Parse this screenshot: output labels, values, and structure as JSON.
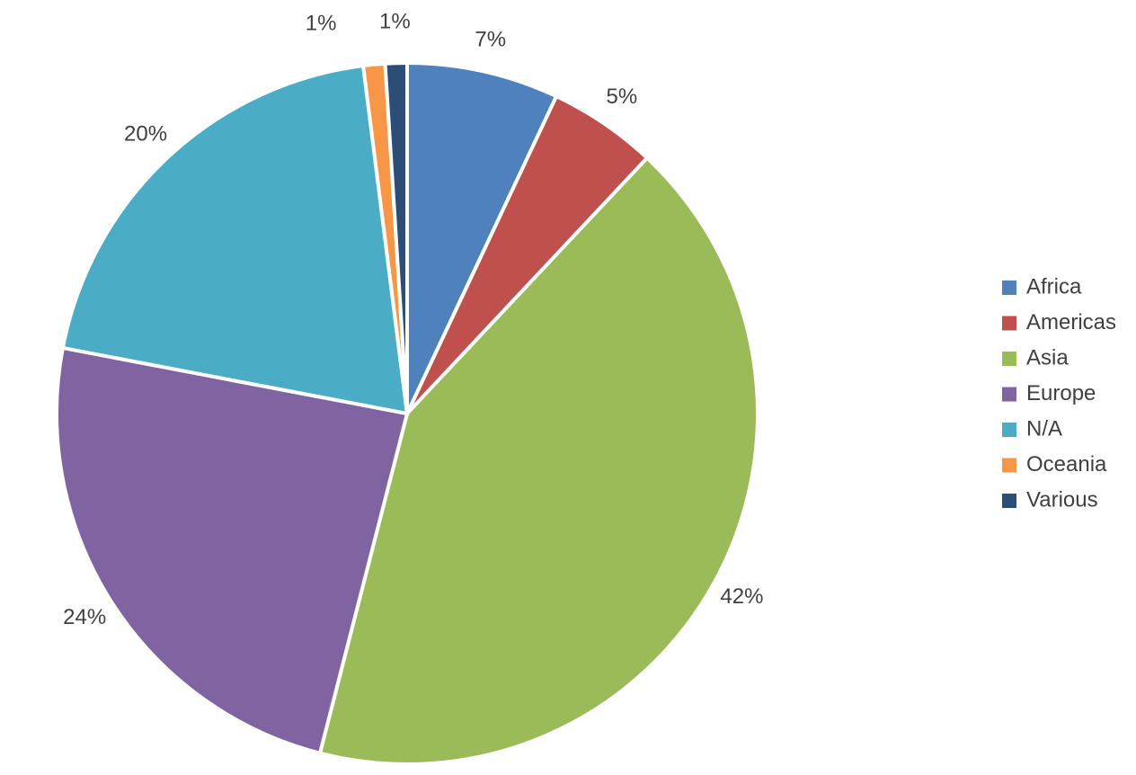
{
  "chart_data": {
    "type": "pie",
    "categories": [
      "Africa",
      "Americas",
      "Asia",
      "Europe",
      "N/A",
      "Oceania",
      "Various"
    ],
    "values": [
      7,
      5,
      42,
      24,
      20,
      1,
      1
    ],
    "value_labels": [
      "7%",
      "5%",
      "42%",
      "24%",
      "20%",
      "1%",
      "1%"
    ],
    "colors": [
      "#4f81bd",
      "#c0504d",
      "#9bbb59",
      "#8064a2",
      "#4bacc6",
      "#f79646",
      "#2c4d75"
    ],
    "legend": "right"
  }
}
